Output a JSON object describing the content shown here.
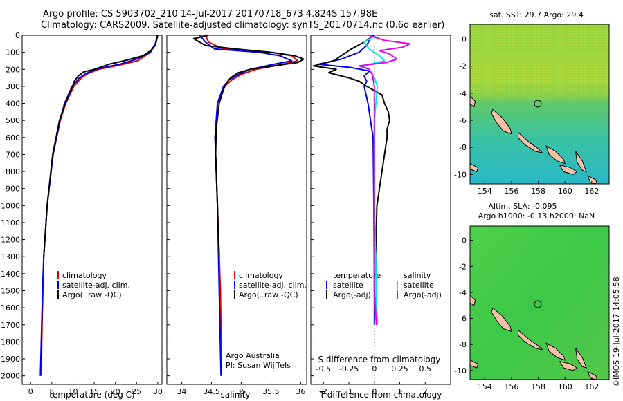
{
  "header": {
    "line1": "Argo profile: CS 5903702_210 14-Jul-2017 20170718_673 4.824S 157.98E",
    "line2": "Climatology: CARS2009. Satellite-adjusted climatology: synTS_20170714.nc (0.6d earlier)"
  },
  "colors": {
    "climatology": "#dd0000",
    "satellite": "#0000ee",
    "argo": "#000000",
    "salinity_satellite": "#00e5ee",
    "salinity_argo": "#ee00ee",
    "land": "#f5c2a8"
  },
  "depth_ticks": [
    "0",
    "100",
    "200",
    "300",
    "400",
    "500",
    "600",
    "700",
    "800",
    "900",
    "1000",
    "1100",
    "1200",
    "1300",
    "1400",
    "1500",
    "1600",
    "1700",
    "1800",
    "1900",
    "2000"
  ],
  "chart_data": [
    {
      "type": "line",
      "id": "temperature",
      "xlabel": "temperature (deg C)",
      "ylim": [
        0,
        2050
      ],
      "xlim": [
        -2,
        31
      ],
      "x_ticks": [
        "0",
        "5",
        "10",
        "15",
        "20",
        "25",
        "30"
      ],
      "legend": [
        "climatology",
        "satellite-adj. clim.",
        "Argo(..raw -QC)"
      ],
      "series": [
        {
          "name": "climatology",
          "depth": [
            0,
            50,
            100,
            150,
            175,
            200,
            225,
            250,
            300,
            400,
            500,
            700,
            1000,
            1300,
            1500,
            1700,
            2000
          ],
          "values": [
            30.0,
            29.5,
            28.3,
            25.2,
            21,
            16,
            13.5,
            12,
            10.2,
            8.3,
            7,
            5.3,
            3.9,
            3.1,
            2.9,
            2.7,
            2.5
          ]
        },
        {
          "name": "satellite-adj. clim.",
          "depth": [
            0,
            50,
            100,
            140,
            170,
            200,
            225,
            250,
            300,
            400,
            500,
            700,
            1000,
            1300,
            1500,
            1700,
            2000
          ],
          "values": [
            30.0,
            29.4,
            28.2,
            25,
            21,
            15.3,
            13,
            11.5,
            9.8,
            8,
            6.9,
            5.3,
            3.9,
            3.1,
            2.8,
            2.6,
            2.3
          ]
        },
        {
          "name": "Argo(..raw -QC)",
          "depth": [
            0,
            30,
            60,
            90,
            120,
            150,
            170,
            200,
            215,
            240,
            270,
            300,
            400,
            500,
            700,
            1000,
            1300
          ],
          "values": [
            29.9,
            29.7,
            29.4,
            28.3,
            26.5,
            22,
            18.5,
            15,
            12.5,
            11.2,
            10.3,
            9.9,
            8.2,
            6.8,
            5.2,
            3.9,
            3.1
          ]
        }
      ]
    },
    {
      "type": "line",
      "id": "salinity",
      "xlabel": "salinity",
      "ylim": [
        0,
        2050
      ],
      "xlim": [
        33.75,
        36.1
      ],
      "x_ticks": [
        "34",
        "34.5",
        "35",
        "35.5",
        "36"
      ],
      "legend": [
        "climatology",
        "satellite-adj. clim.",
        "Argo(..raw -QC)"
      ],
      "annotation": [
        "Argo Australia",
        "PI: Susan Wijffels"
      ],
      "series": [
        {
          "name": "climatology",
          "depth": [
            0,
            40,
            80,
            100,
            120,
            150,
            170,
            200,
            230,
            260,
            300,
            400,
            600,
            1000,
            1500,
            2000
          ],
          "values": [
            34.4,
            34.45,
            34.7,
            35.5,
            35.85,
            35.95,
            35.7,
            35.25,
            35.0,
            34.85,
            34.72,
            34.6,
            34.56,
            34.6,
            34.65,
            34.67
          ]
        },
        {
          "name": "satellite-adj. clim.",
          "depth": [
            0,
            40,
            80,
            100,
            120,
            150,
            170,
            200,
            230,
            260,
            300,
            400,
            600,
            1000,
            1500,
            2000
          ],
          "values": [
            34.3,
            34.4,
            34.55,
            35.3,
            35.65,
            35.85,
            35.55,
            35.15,
            34.95,
            34.8,
            34.7,
            34.6,
            34.56,
            34.6,
            34.63,
            34.66
          ]
        },
        {
          "name": "Argo(..raw -QC)",
          "depth": [
            0,
            20,
            40,
            60,
            80,
            100,
            120,
            140,
            160,
            180,
            200,
            220,
            250,
            280,
            320,
            400,
            550,
            700,
            1000,
            1300
          ],
          "values": [
            34.45,
            34.2,
            34.3,
            34.4,
            34.9,
            35.5,
            35.9,
            36.05,
            35.95,
            35.55,
            35.15,
            34.95,
            34.82,
            34.75,
            34.7,
            34.63,
            34.58,
            34.57,
            34.6,
            34.63
          ]
        }
      ]
    },
    {
      "type": "line",
      "id": "difference",
      "xlabel": "T difference from climatology",
      "xlabel_top": "S difference from climatology",
      "ylim": [
        0,
        2050
      ],
      "xlim": [
        -2.5,
        3.0
      ],
      "x_ticks": [
        "-2",
        "-1",
        "0",
        "1",
        "2"
      ],
      "x_ticks_top": [
        "-0.5",
        "-0.25",
        "0",
        "0.25",
        "0.5"
      ],
      "legend_left": [
        "temperature",
        "satellite",
        "Argo(-adj)"
      ],
      "legend_right": [
        "salinity",
        "satellite",
        "Argo(-adj)"
      ],
      "series": [
        {
          "name": "T satellite",
          "depth": [
            0,
            60,
            100,
            140,
            170,
            190,
            210,
            240,
            270,
            300,
            400,
            600,
            1000,
            1500,
            1700
          ],
          "values": [
            -0.1,
            -0.3,
            -0.6,
            -1.3,
            -2.2,
            -0.9,
            -0.2,
            -0.4,
            -0.3,
            -0.4,
            -0.25,
            -0.05,
            -0.02,
            0.0,
            0.0
          ]
        },
        {
          "name": "T Argo(-adj)",
          "depth": [
            0,
            40,
            80,
            120,
            150,
            180,
            200,
            220,
            250,
            270,
            300,
            350,
            400,
            450,
            500,
            550,
            600,
            800,
            1000,
            1300,
            1700
          ],
          "values": [
            0.0,
            -0.4,
            -0.9,
            -1.3,
            -1.6,
            -2.4,
            -1.5,
            -1.8,
            -1.0,
            -0.6,
            -0.3,
            0.3,
            0.4,
            0.55,
            0.6,
            0.5,
            0.5,
            0.3,
            0.1,
            0.05,
            0.1
          ]
        },
        {
          "name": "S satellite",
          "depth": [
            0,
            40,
            80,
            120,
            150,
            180,
            200,
            250,
            300,
            500,
            1000,
            1500,
            1700
          ],
          "values": [
            0.02,
            -0.1,
            -0.05,
            0.05,
            0.1,
            -0.12,
            -0.05,
            0.0,
            0.03,
            0.0,
            0.0,
            0.02,
            0.02
          ]
        },
        {
          "name": "S Argo(-adj)",
          "depth": [
            0,
            30,
            50,
            70,
            90,
            110,
            140,
            160,
            180,
            200,
            230,
            300,
            500,
            1000,
            1500,
            1700
          ],
          "values": [
            -0.05,
            0.1,
            0.35,
            0.28,
            0.05,
            0.15,
            0.22,
            0.12,
            -0.15,
            -0.05,
            -0.02,
            0.0,
            0.0,
            0.0,
            0.0,
            0.02
          ]
        }
      ]
    }
  ],
  "maps": {
    "top": {
      "title": "sat. SST: 29.7 Argo: 29.4",
      "x_ticks": [
        "154",
        "156",
        "158",
        "160",
        "162"
      ],
      "y_ticks": [
        "0",
        "-2",
        "-4",
        "-6",
        "-8",
        "-10"
      ]
    },
    "bottom": {
      "title_line1": "Altim. SLA: -0.095",
      "title_line2": "Argo h1000: -0.13 h2000: NaN",
      "x_ticks": [
        "154",
        "156",
        "158",
        "160",
        "162"
      ],
      "y_ticks": [
        "0",
        "-2",
        "-4",
        "-6",
        "-8",
        "-10"
      ]
    },
    "float_position": {
      "lon": 157.98,
      "lat": -4.824
    }
  },
  "footer": {
    "timestamp": "©IMOS 19-Jul-2017 14:05:58"
  }
}
